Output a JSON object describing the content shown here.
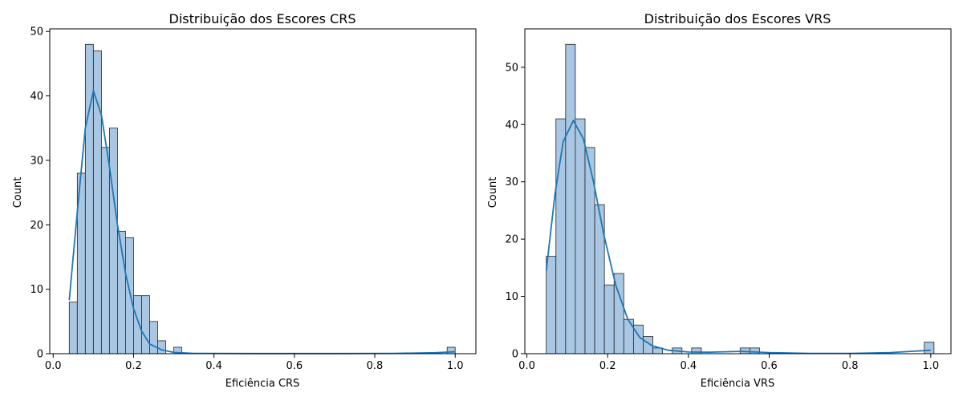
{
  "chart_data": [
    {
      "type": "bar",
      "title": "Distribuição dos Escores CRS",
      "xlabel": "Eficiência CRS",
      "ylabel": "Count",
      "xlim": [
        -0.0085,
        1.0515
      ],
      "ylim": [
        0,
        50.4
      ],
      "xticks": [
        0.0,
        0.2,
        0.4,
        0.6,
        0.8,
        1.0
      ],
      "xtick_labels": [
        "0.0",
        "0.2",
        "0.4",
        "0.6",
        "0.8",
        "1.0"
      ],
      "yticks": [
        0,
        10,
        20,
        30,
        40,
        50
      ],
      "ytick_labels": [
        "0",
        "10",
        "20",
        "30",
        "40",
        "50"
      ],
      "bin_start": 0.04,
      "bin_width": 0.02,
      "counts": [
        8,
        28,
        48,
        47,
        32,
        35,
        19,
        18,
        9,
        9,
        5,
        2,
        0,
        1,
        0,
        0,
        0,
        0,
        0,
        0,
        0,
        0,
        0,
        0,
        0,
        0,
        0,
        0,
        0,
        0,
        0,
        0,
        0,
        0,
        0,
        0,
        0,
        0,
        0,
        0,
        0,
        0,
        0,
        0,
        0,
        0,
        0,
        1
      ],
      "kde": [
        [
          0.04,
          8.3
        ],
        [
          0.06,
          22
        ],
        [
          0.08,
          35
        ],
        [
          0.1,
          40.8
        ],
        [
          0.12,
          37
        ],
        [
          0.14,
          29
        ],
        [
          0.16,
          20
        ],
        [
          0.18,
          12.5
        ],
        [
          0.2,
          7
        ],
        [
          0.22,
          3.5
        ],
        [
          0.24,
          1.5
        ],
        [
          0.27,
          0.6
        ],
        [
          0.3,
          0.2
        ],
        [
          0.35,
          0.05
        ],
        [
          0.5,
          0.02
        ],
        [
          0.7,
          0.02
        ],
        [
          0.85,
          0.05
        ],
        [
          0.95,
          0.15
        ],
        [
          1.0,
          0.3
        ]
      ],
      "grid": false,
      "colors": {
        "bar_fill": "#a9c7e3",
        "bar_edge": "#222222",
        "kde": "#1f77b4"
      }
    },
    {
      "type": "bar",
      "title": "Distribuição dos Escores VRS",
      "xlabel": "Eficiência VRS",
      "ylabel": "Count",
      "xlim": [
        -0.005,
        1.05
      ],
      "ylim": [
        0,
        56.7
      ],
      "xticks": [
        0.0,
        0.2,
        0.4,
        0.6,
        0.8,
        1.0
      ],
      "xtick_labels": [
        "0.0",
        "0.2",
        "0.4",
        "0.6",
        "0.8",
        "1.0"
      ],
      "yticks": [
        0,
        10,
        20,
        30,
        40,
        50
      ],
      "ytick_labels": [
        "0",
        "10",
        "20",
        "30",
        "40",
        "50"
      ],
      "bin_start": 0.048,
      "bin_width": 0.024,
      "counts": [
        17,
        41,
        54,
        41,
        36,
        26,
        12,
        14,
        6,
        5,
        3,
        1,
        0,
        1,
        0,
        1,
        0,
        0,
        0,
        0,
        1,
        1,
        0,
        0,
        0,
        0,
        0,
        0,
        0,
        0,
        0,
        0,
        0,
        0,
        0,
        0,
        0,
        0,
        0,
        2
      ],
      "kde": [
        [
          0.048,
          14.5
        ],
        [
          0.07,
          28
        ],
        [
          0.09,
          37
        ],
        [
          0.115,
          40.7
        ],
        [
          0.14,
          37.5
        ],
        [
          0.165,
          30
        ],
        [
          0.19,
          21
        ],
        [
          0.22,
          12
        ],
        [
          0.25,
          6
        ],
        [
          0.28,
          2.8
        ],
        [
          0.31,
          1.4
        ],
        [
          0.35,
          0.6
        ],
        [
          0.4,
          0.3
        ],
        [
          0.45,
          0.25
        ],
        [
          0.53,
          0.4
        ],
        [
          0.6,
          0.2
        ],
        [
          0.7,
          0.05
        ],
        [
          0.8,
          0.05
        ],
        [
          0.9,
          0.2
        ],
        [
          1.0,
          0.6
        ]
      ],
      "grid": false,
      "colors": {
        "bar_fill": "#a9c7e3",
        "bar_edge": "#222222",
        "kde": "#1f77b4"
      }
    }
  ]
}
